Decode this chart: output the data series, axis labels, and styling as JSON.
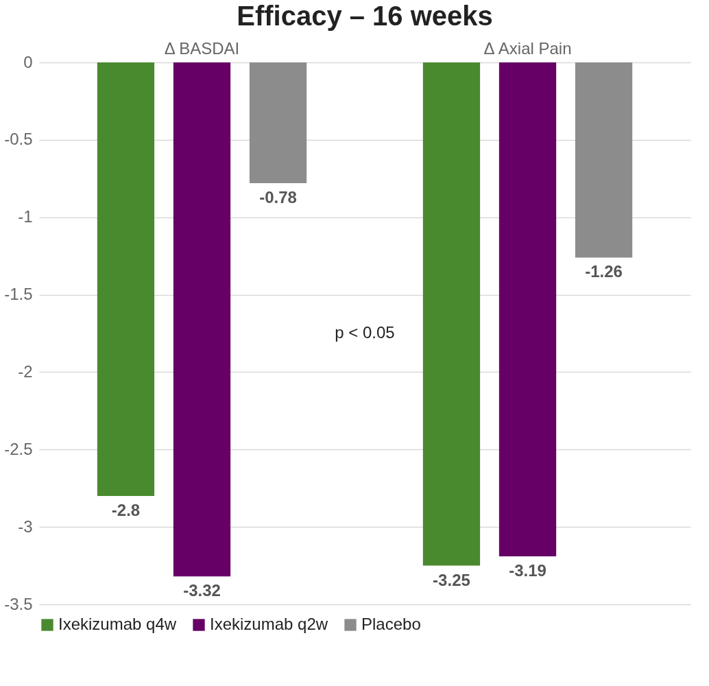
{
  "chart_data": {
    "type": "bar",
    "title": "Efficacy – 16 weeks",
    "categories": [
      "Δ BASDAI",
      "Δ Axial Pain"
    ],
    "series": [
      {
        "name": "Ixekizumab q4w",
        "color": "#4a8a2f",
        "values": [
          -2.8,
          -3.25
        ]
      },
      {
        "name": "Ixekizumab q2w",
        "color": "#660066",
        "values": [
          -3.32,
          -3.19
        ]
      },
      {
        "name": "Placebo",
        "color": "#8c8c8c",
        "values": [
          -0.78,
          -1.26
        ]
      }
    ],
    "ylim": [
      -3.5,
      0
    ],
    "yticks": [
      0,
      -0.5,
      -1,
      -1.5,
      -2,
      -2.5,
      -3,
      -3.5
    ],
    "grid": "y",
    "legend": "bottom",
    "data_labels": true,
    "annotations": [
      "p < 0.05"
    ]
  }
}
